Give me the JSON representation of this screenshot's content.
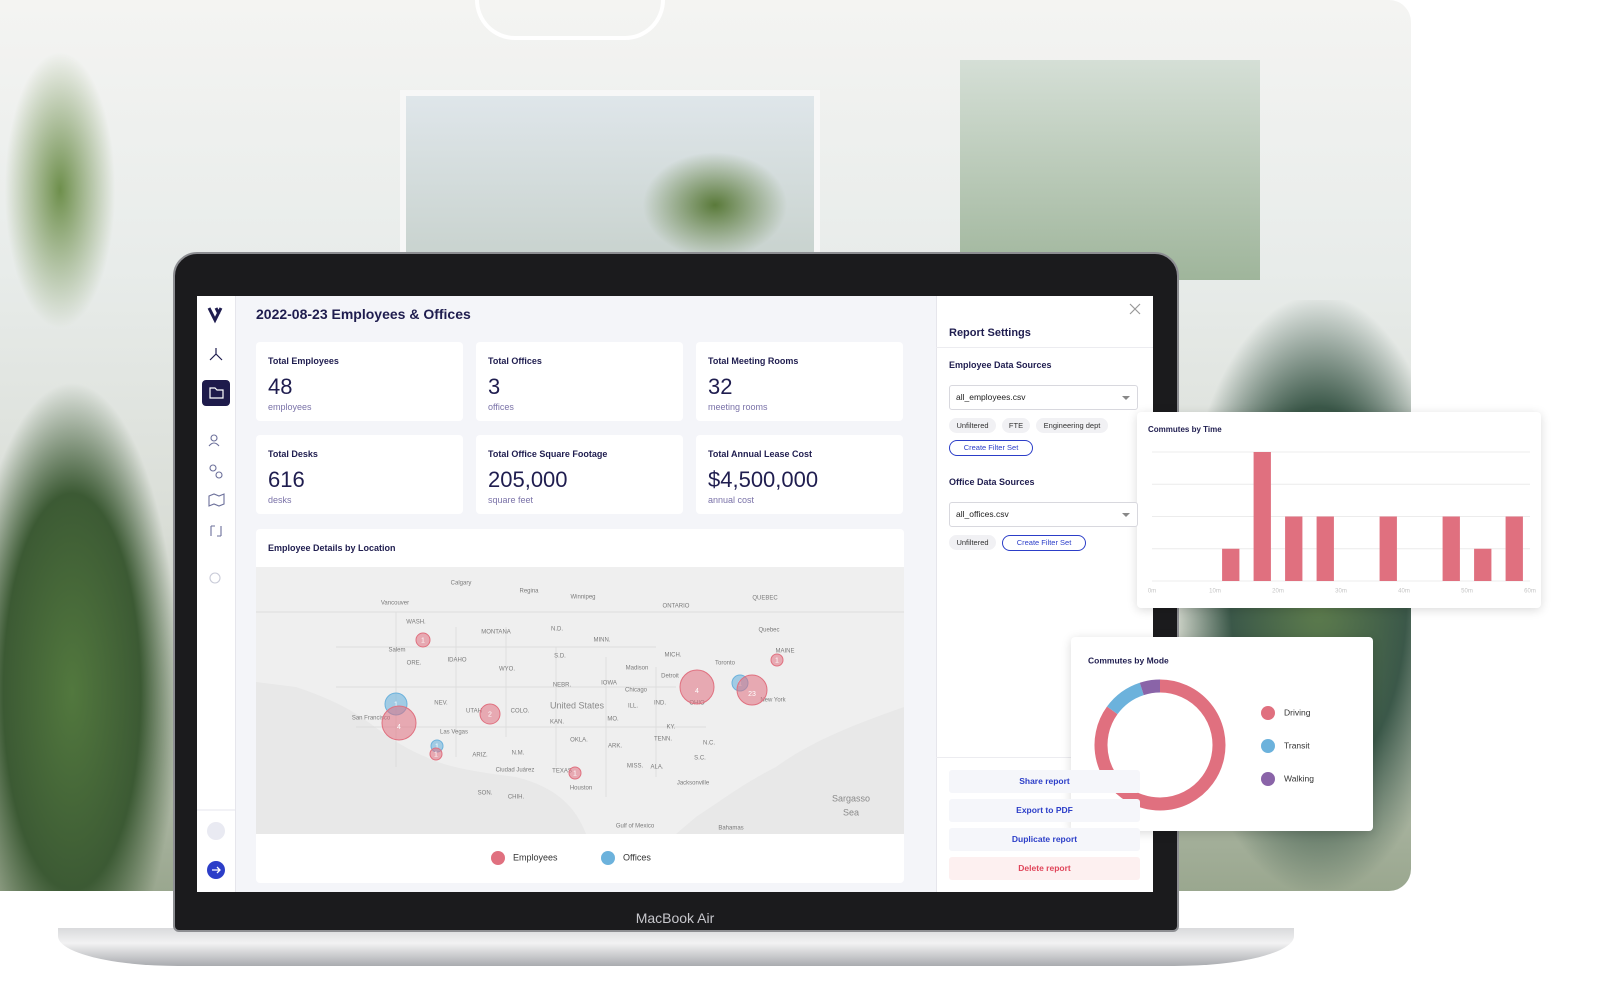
{
  "app": {
    "title": "2022-08-23 Employees & Offices",
    "kpis": [
      {
        "label": "Total Employees",
        "value": "48",
        "unit": "employees"
      },
      {
        "label": "Total Offices",
        "value": "3",
        "unit": "offices"
      },
      {
        "label": "Total Meeting Rooms",
        "value": "32",
        "unit": "meeting rooms"
      },
      {
        "label": "Total Desks",
        "value": "616",
        "unit": "desks"
      },
      {
        "label": "Total Office Square Footage",
        "value": "205,000",
        "unit": "square feet"
      },
      {
        "label": "Total Annual Lease Cost",
        "value": "$4,500,000",
        "unit": "annual cost"
      }
    ],
    "map": {
      "title": "Employee Details by Location",
      "labels": [
        "Calgary",
        "Regina",
        "Winnipeg",
        "Vancouver",
        "ONTARIO",
        "QUEBEC",
        "WASH.",
        "MONTANA",
        "N.D.",
        "MINN.",
        "Quebec",
        "Salem",
        "ORE.",
        "IDAHO",
        "S.D.",
        "WYO.",
        "MICH.",
        "Toronto",
        "MAINE",
        "Madison",
        "NEBR.",
        "IOWA",
        "Chicago",
        "Detroit",
        "NEV.",
        "UTAH",
        "COLO.",
        "United States",
        "ILL.",
        "IND.",
        "OHIO",
        "MO.",
        "KAN.",
        "KY.",
        "Las Vegas",
        "San Francisco",
        "ARIZ.",
        "N.M.",
        "OKLA.",
        "ARK.",
        "TENN.",
        "N.C.",
        "New York",
        "TEXAS",
        "MISS.",
        "ALA.",
        "S.C.",
        "Ciudad Juárez",
        "Houston",
        "Jacksonville",
        "SON.",
        "CHIH.",
        "Sargasso",
        "Sea",
        "Gulf of Mexico",
        "Bahamas"
      ],
      "clusters": [
        {
          "kind": "employees",
          "count": 1
        },
        {
          "kind": "offices",
          "count": 1
        },
        {
          "kind": "employees",
          "count": 4
        },
        {
          "kind": "employees",
          "count": 2
        },
        {
          "kind": "offices",
          "count": 1
        },
        {
          "kind": "employees",
          "count": 1
        },
        {
          "kind": "employees",
          "count": 1
        },
        {
          "kind": "employees",
          "count": 4
        },
        {
          "kind": "offices",
          "count": 1
        },
        {
          "kind": "employees",
          "count": 23
        },
        {
          "kind": "employees",
          "count": 1
        }
      ],
      "legend": [
        "Employees",
        "Offices"
      ]
    },
    "settings": {
      "title": "Report Settings",
      "employee_sources": {
        "heading": "Employee Data Sources",
        "file": "all_employees.csv",
        "filters": [
          "Unfiltered",
          "FTE",
          "Engineering dept"
        ],
        "create": "Create Filter Set"
      },
      "office_sources": {
        "heading": "Office Data Sources",
        "file": "all_offices.csv",
        "filters": [
          "Unfiltered"
        ],
        "create": "Create Filter Set"
      },
      "actions": [
        "Share report",
        "Export to PDF",
        "Duplicate report",
        "Delete report"
      ]
    }
  },
  "device": "MacBook Air",
  "chart_data": [
    {
      "type": "bar",
      "title": "Commutes by Time",
      "x": [
        12.5,
        17.5,
        22.5,
        27.5,
        37.5,
        47.5,
        52.5,
        57.5
      ],
      "values": [
        1,
        4,
        2,
        2,
        2,
        2,
        1,
        2
      ],
      "color": "#e0707f",
      "xlim": [
        0,
        60
      ],
      "xticks": [
        {
          "value": 0,
          "label": "0m"
        },
        {
          "value": 10,
          "label": "10m"
        },
        {
          "value": 20,
          "label": "20m"
        },
        {
          "value": 30,
          "label": "30m"
        },
        {
          "value": 40,
          "label": "40m"
        },
        {
          "value": 50,
          "label": "50m"
        },
        {
          "value": 60,
          "label": "60m"
        }
      ],
      "ylim": [
        0,
        4
      ],
      "yticks": [
        0,
        1,
        2,
        3,
        4
      ],
      "grid": true
    },
    {
      "type": "pie",
      "title": "Commutes by Mode",
      "categories": [
        "Driving",
        "Transit",
        "Walking"
      ],
      "values": [
        85,
        10,
        5
      ],
      "colors": [
        "#e0707f",
        "#6cb2dc",
        "#8a64a8"
      ]
    }
  ]
}
